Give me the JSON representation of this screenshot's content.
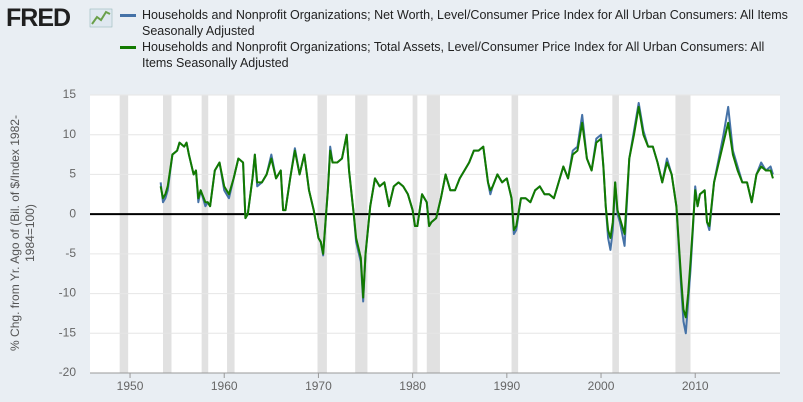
{
  "logo": "FRED",
  "chart_data": {
    "type": "line",
    "y_label": "% Chg. from Yr. Ago of (Bil. of $/Index 1982-1984=100)",
    "x": [
      1953.25,
      1953.5,
      1953.75,
      1954,
      1954.5,
      1955,
      1955.25,
      1955.75,
      1956,
      1956.25,
      1956.75,
      1957,
      1957.25,
      1957.5,
      1958,
      1958.25,
      1958.5,
      1959,
      1959.5,
      1960,
      1960.5,
      1961,
      1961.5,
      1962,
      1962.25,
      1962.5,
      1963,
      1963.25,
      1963.5,
      1964,
      1964.5,
      1965,
      1965.5,
      1966,
      1966.25,
      1966.5,
      1967,
      1967.5,
      1968,
      1968.5,
      1969,
      1969.5,
      1970,
      1970.25,
      1970.5,
      1970.75,
      1971,
      1971.25,
      1971.5,
      1972,
      1972.5,
      1973,
      1973.25,
      1973.75,
      1974,
      1974.5,
      1974.75,
      1975,
      1975.5,
      1976,
      1976.5,
      1977,
      1977.5,
      1978,
      1978.5,
      1979,
      1979.5,
      1980,
      1980.25,
      1980.5,
      1981,
      1981.5,
      1981.75,
      1982,
      1982.5,
      1983,
      1983.5,
      1984,
      1984.5,
      1985,
      1985.5,
      1986,
      1986.5,
      1987,
      1987.5,
      1988,
      1988.25,
      1988.5,
      1989,
      1989.5,
      1990,
      1990.5,
      1990.75,
      1991,
      1991.5,
      1992,
      1992.5,
      1993,
      1993.5,
      1994,
      1994.5,
      1995,
      1995.5,
      1996,
      1996.5,
      1997,
      1997.5,
      1998,
      1998.5,
      1999,
      1999.5,
      2000,
      2000.25,
      2000.5,
      2000.75,
      2001,
      2001.25,
      2001.5,
      2001.75,
      2002,
      2002.5,
      2003,
      2003.5,
      2004,
      2004.5,
      2005,
      2005.5,
      2006,
      2006.5,
      2007,
      2007.5,
      2008,
      2008.25,
      2008.5,
      2008.75,
      2009,
      2009.25,
      2009.5,
      2009.75,
      2010,
      2010.25,
      2010.5,
      2011,
      2011.25,
      2011.5,
      2012,
      2012.5,
      2013,
      2013.5,
      2014,
      2014.5,
      2015,
      2015.5,
      2016,
      2016.5,
      2017,
      2017.5,
      2018,
      2018.25
    ],
    "series": [
      {
        "name": "Households and Nonprofit Organizations; Net Worth, Level/Consumer Price Index for All Urban Consumers: All Items Seasonally Adjusted",
        "color": "#4572a7",
        "values": [
          4,
          1.5,
          2,
          3,
          7.5,
          8,
          9,
          8.5,
          9,
          7.5,
          5,
          5.5,
          1.5,
          3,
          1,
          1.5,
          1,
          5.5,
          6.5,
          3,
          2,
          4.5,
          7,
          6.5,
          -0.5,
          0,
          4.5,
          7.5,
          3.5,
          4,
          5,
          7.5,
          4.5,
          5.5,
          0.5,
          0.5,
          4.5,
          8.3,
          5,
          7.5,
          3,
          0.5,
          -3,
          -3.5,
          -5.2,
          -1,
          3,
          8.5,
          6.5,
          6.5,
          7,
          10,
          5.5,
          0,
          -3.5,
          -6,
          -11,
          -5,
          1,
          4.5,
          3.5,
          4,
          1,
          3.5,
          4,
          3.5,
          2.5,
          0.5,
          -1.5,
          -1.5,
          2.5,
          1.5,
          -1.5,
          -1,
          -0.5,
          2,
          5,
          3,
          3,
          4.5,
          5.5,
          6.5,
          8,
          8,
          8.5,
          4,
          2.5,
          3.5,
          5,
          4,
          4.5,
          2,
          -2.5,
          -2,
          2,
          2,
          1.5,
          3,
          3.5,
          2.5,
          2.5,
          2,
          4,
          6,
          4.5,
          8,
          8.5,
          12.5,
          7,
          5.5,
          9.5,
          10,
          6,
          1,
          -3,
          -4.5,
          -2,
          4,
          0,
          -1,
          -4,
          7,
          10.5,
          14,
          10.5,
          8.5,
          8.5,
          6.5,
          4,
          7,
          5,
          1,
          -4,
          -9,
          -13.5,
          -15,
          -11,
          -7,
          -2,
          3.5,
          1,
          2.5,
          3,
          -1,
          -2,
          4,
          7,
          10,
          13.5,
          8,
          6,
          4,
          4,
          1.5,
          5,
          6.5,
          5.5,
          6,
          5
        ]
      },
      {
        "name": "Households and Nonprofit Organizations; Total Assets, Level/Consumer Price Index for All Urban Consumers: All Items Seasonally Adjusted",
        "color": "#127a00",
        "values": [
          3.5,
          2,
          2.5,
          3.5,
          7.5,
          8,
          9,
          8.5,
          9,
          7.5,
          5,
          5.5,
          2,
          3,
          1.5,
          1.5,
          1,
          5.5,
          6.5,
          3.5,
          2.5,
          4.5,
          7,
          6.5,
          -0.5,
          0,
          4.5,
          7.5,
          4,
          4,
          5,
          7,
          4.5,
          5.5,
          0.5,
          0.5,
          4.5,
          8,
          5,
          7.5,
          3,
          0.5,
          -3,
          -3.5,
          -5,
          -1,
          3,
          8,
          6.5,
          6.5,
          7,
          10,
          5.5,
          0,
          -3,
          -5.5,
          -10.5,
          -5,
          1,
          4.5,
          3.5,
          4,
          1,
          3.5,
          4,
          3.5,
          2.5,
          0.5,
          -1.5,
          -1.5,
          2.5,
          1.5,
          -1.5,
          -1,
          -0.5,
          2,
          5,
          3,
          3,
          4.5,
          5.5,
          6.5,
          8,
          8,
          8.5,
          4,
          3,
          3.5,
          5,
          4,
          4.5,
          2,
          -2,
          -1.5,
          2,
          2,
          1.5,
          3,
          3.5,
          2.5,
          2.5,
          2,
          4,
          6,
          4.5,
          7.5,
          8,
          11.5,
          7,
          5.5,
          9,
          9.5,
          6,
          1,
          -2,
          -3,
          -1,
          4,
          0.5,
          -0.5,
          -2.5,
          7,
          10,
          13.5,
          10,
          8.5,
          8.5,
          6.5,
          4,
          6.5,
          5,
          1,
          -3.5,
          -8,
          -12,
          -13,
          -10,
          -6,
          -1.5,
          3,
          1,
          2.5,
          3,
          -1,
          -1.5,
          4,
          6.5,
          9,
          11.5,
          7.5,
          5.5,
          4,
          4,
          1.5,
          5,
          6,
          5.5,
          5.5,
          4.5
        ]
      }
    ],
    "shaded_periods": [
      [
        1948.9,
        1949.8
      ],
      [
        1953.5,
        1954.4
      ],
      [
        1957.6,
        1958.3
      ],
      [
        1960.3,
        1961.1
      ],
      [
        1969.9,
        1970.9
      ],
      [
        1973.9,
        1975.2
      ],
      [
        1980,
        1980.5
      ],
      [
        1981.5,
        1982.9
      ],
      [
        1990.5,
        1991.2
      ],
      [
        2001.2,
        2001.9
      ],
      [
        2007.9,
        2009.5
      ]
    ],
    "shade_color": "#e1e1e1",
    "xlim": [
      1945.75,
      2019
    ],
    "xticks": [
      1950,
      1960,
      1970,
      1980,
      1990,
      2000,
      2010
    ],
    "ylim": [
      -20,
      15
    ],
    "yticks": [
      -20,
      -15,
      -10,
      -5,
      0,
      5,
      10,
      15
    ],
    "grid": true
  }
}
